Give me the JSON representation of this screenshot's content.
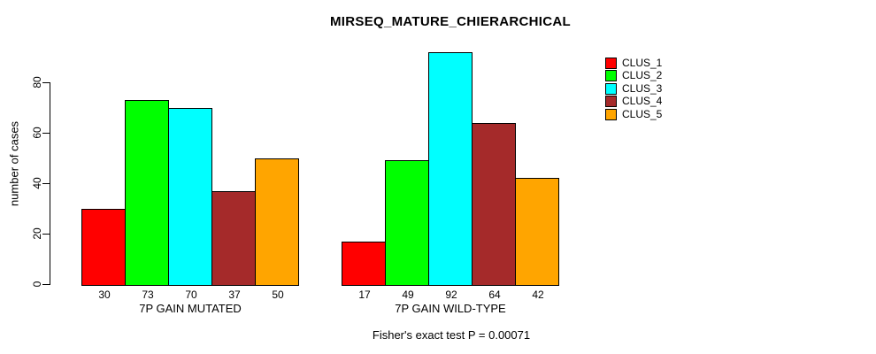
{
  "chart_data": {
    "type": "bar",
    "title": "MIRSEQ_MATURE_CHIERARCHICAL",
    "ylabel": "number of cases",
    "xlabel": "",
    "yticks": [
      0,
      20,
      40,
      60,
      80
    ],
    "ylim": [
      0,
      95
    ],
    "grid": false,
    "legend_position": "right",
    "bar_value_labels_shown": true,
    "annotation": "Fisher's exact test P = 0.00071",
    "categories": [
      "7P GAIN MUTATED",
      "7P GAIN WILD-TYPE"
    ],
    "series": [
      {
        "name": "CLUS_1",
        "color": "#FF0000",
        "values": [
          30,
          17
        ]
      },
      {
        "name": "CLUS_2",
        "color": "#00FF00",
        "values": [
          73,
          49
        ]
      },
      {
        "name": "CLUS_3",
        "color": "#00FFFF",
        "values": [
          70,
          92
        ]
      },
      {
        "name": "CLUS_4",
        "color": "#A52A2A",
        "values": [
          37,
          64
        ]
      },
      {
        "name": "CLUS_5",
        "color": "#FFA500",
        "values": [
          50,
          42
        ]
      }
    ]
  }
}
